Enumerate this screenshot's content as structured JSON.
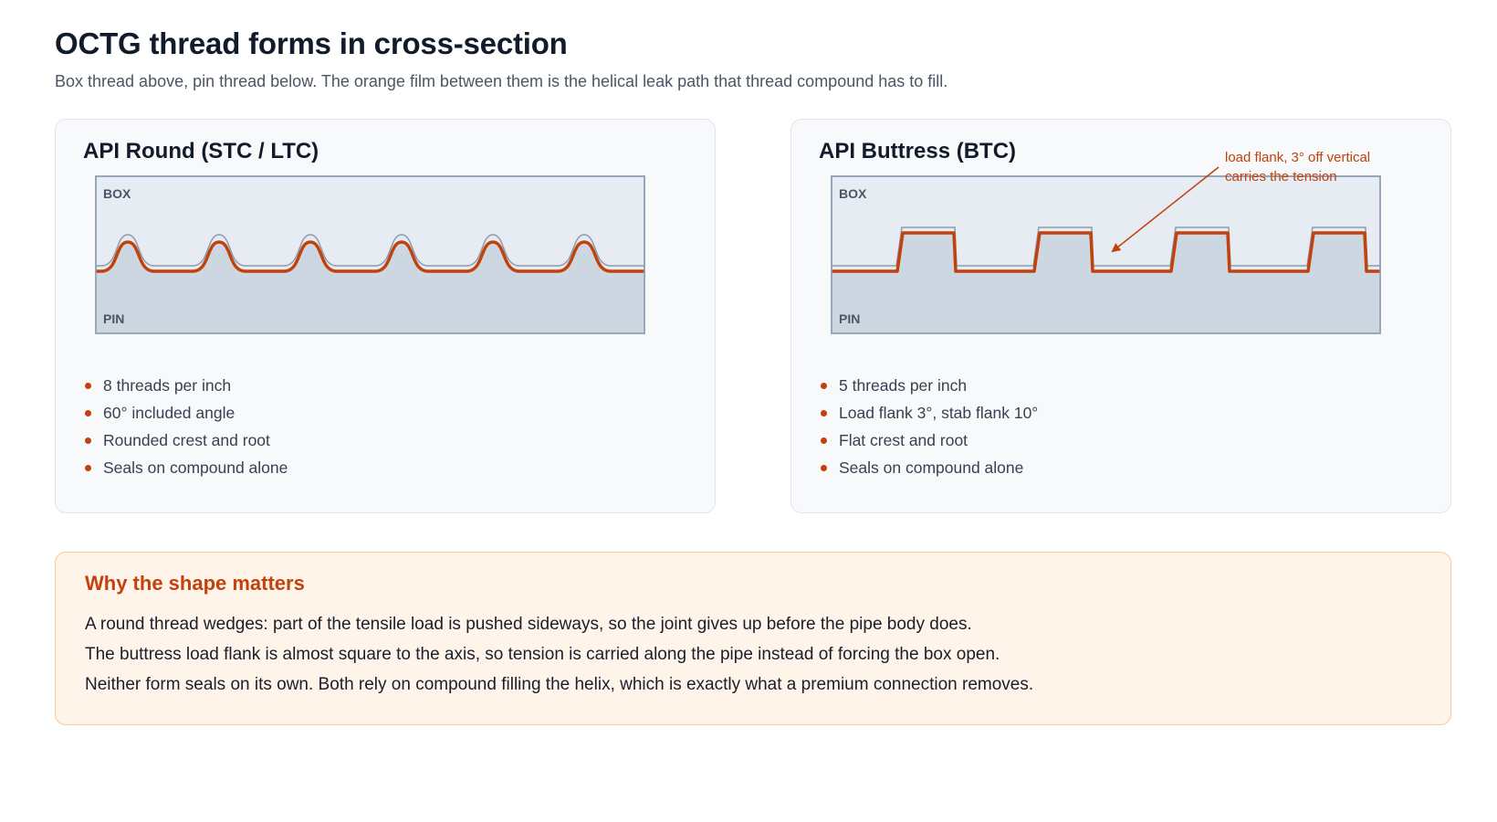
{
  "page": {
    "title": "OCTG thread forms in cross-section",
    "subtitle": "Box thread above, pin thread below. The orange film between them is the helical leak path that thread compound has to fill."
  },
  "cards": [
    {
      "title": "API Round (STC / LTC)",
      "box_label": "BOX",
      "pin_label": "PIN",
      "thread_profile": "rounded",
      "thread_count_shown": 6,
      "features": [
        "8 threads per inch",
        "60° included angle",
        "Rounded crest and root",
        "Seals on compound alone"
      ]
    },
    {
      "title": "API Buttress (BTC)",
      "box_label": "BOX",
      "pin_label": "PIN",
      "thread_profile": "buttress",
      "thread_count_shown": 4,
      "annotation": [
        "load flank, 3° off vertical",
        "carries the tension"
      ],
      "features": [
        "5 threads per inch",
        "Load flank 3°, stab flank 10°",
        "Flat crest and root",
        "Seals on compound alone"
      ]
    }
  ],
  "callout": {
    "title": "Why the shape matters",
    "lines": [
      "A round thread wedges: part of the tensile load is pushed sideways, so the joint gives up before the pipe body does.",
      "The buttress load flank is almost square to the axis, so tension is carried along the pipe instead of forcing the box open.",
      "Neither form seals on its own. Both rely on compound filling the helix, which is exactly what a premium connection removes."
    ]
  },
  "colors": {
    "box_fill": "#e7ecf3",
    "pin_fill": "#cdd7e2",
    "outline": "#8a9bb0",
    "leak_film": "#c2410c",
    "accent": "#c2410c"
  }
}
